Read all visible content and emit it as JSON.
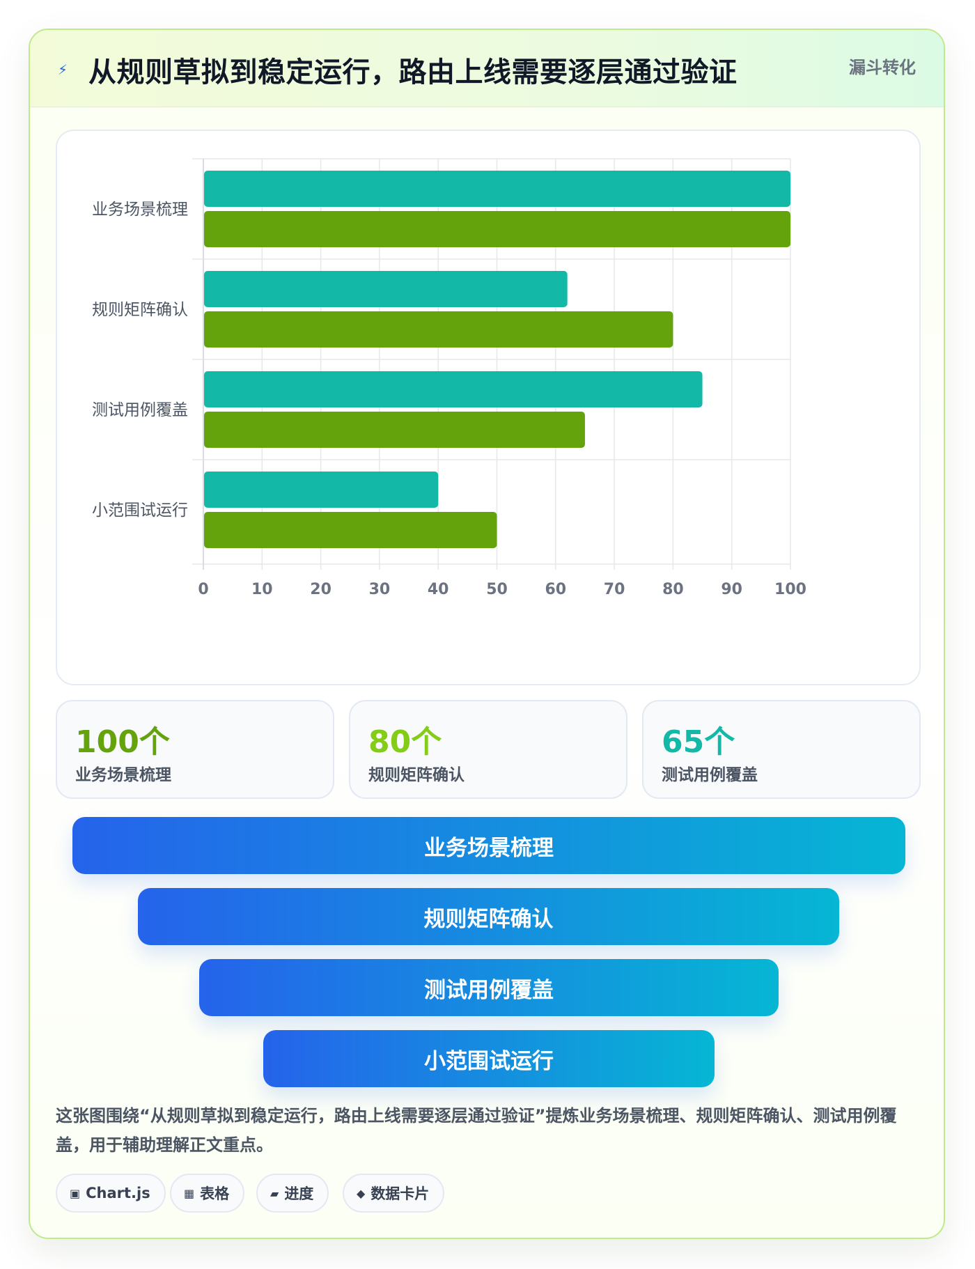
{
  "header": {
    "icon": "lightning-icon",
    "title": "从规则草拟到稳定运行，路由上线需要逐层通过验证",
    "tag": "漏斗转化"
  },
  "colors": {
    "series1": "#14b8a6",
    "series2": "#65a30d",
    "funnel_start": "#2563eb",
    "funnel_end": "#06b6d4",
    "accent_green": "#65a30d",
    "accent_teal": "#0d9488"
  },
  "chart_data": {
    "type": "bar",
    "orientation": "horizontal",
    "categories": [
      "业务场景梳理",
      "规则矩阵确认",
      "测试用例覆盖",
      "小范围试运行"
    ],
    "series": [
      {
        "values": [
          100,
          62,
          85,
          40
        ]
      },
      {
        "values": [
          100,
          80,
          65,
          50
        ]
      }
    ],
    "xlim": [
      0,
      100
    ],
    "xticks": [
      0,
      10,
      20,
      30,
      40,
      50,
      60,
      70,
      80,
      90,
      100
    ],
    "grid": true,
    "legend": "none"
  },
  "stats": [
    {
      "value": "100个",
      "label": "业务场景梳理"
    },
    {
      "value": "80个",
      "label": "规则矩阵确认"
    },
    {
      "value": "65个",
      "label": "测试用例覆盖"
    }
  ],
  "funnel": [
    {
      "label": "业务场景梳理"
    },
    {
      "label": "规则矩阵确认"
    },
    {
      "label": "测试用例覆盖"
    },
    {
      "label": "小范围试运行"
    }
  ],
  "description": "这张图围绕“从规则草拟到稳定运行，路由上线需要逐层通过验证”提炼业务场景梳理、规则矩阵确认、测试用例覆盖，用于辅助理解正文重点。",
  "chips": [
    {
      "icon": "▣",
      "label": "Chart.js"
    },
    {
      "icon": "▦",
      "label": "表格"
    },
    {
      "icon": "▰",
      "label": "进度"
    },
    {
      "icon": "◆",
      "label": "数据卡片"
    }
  ]
}
